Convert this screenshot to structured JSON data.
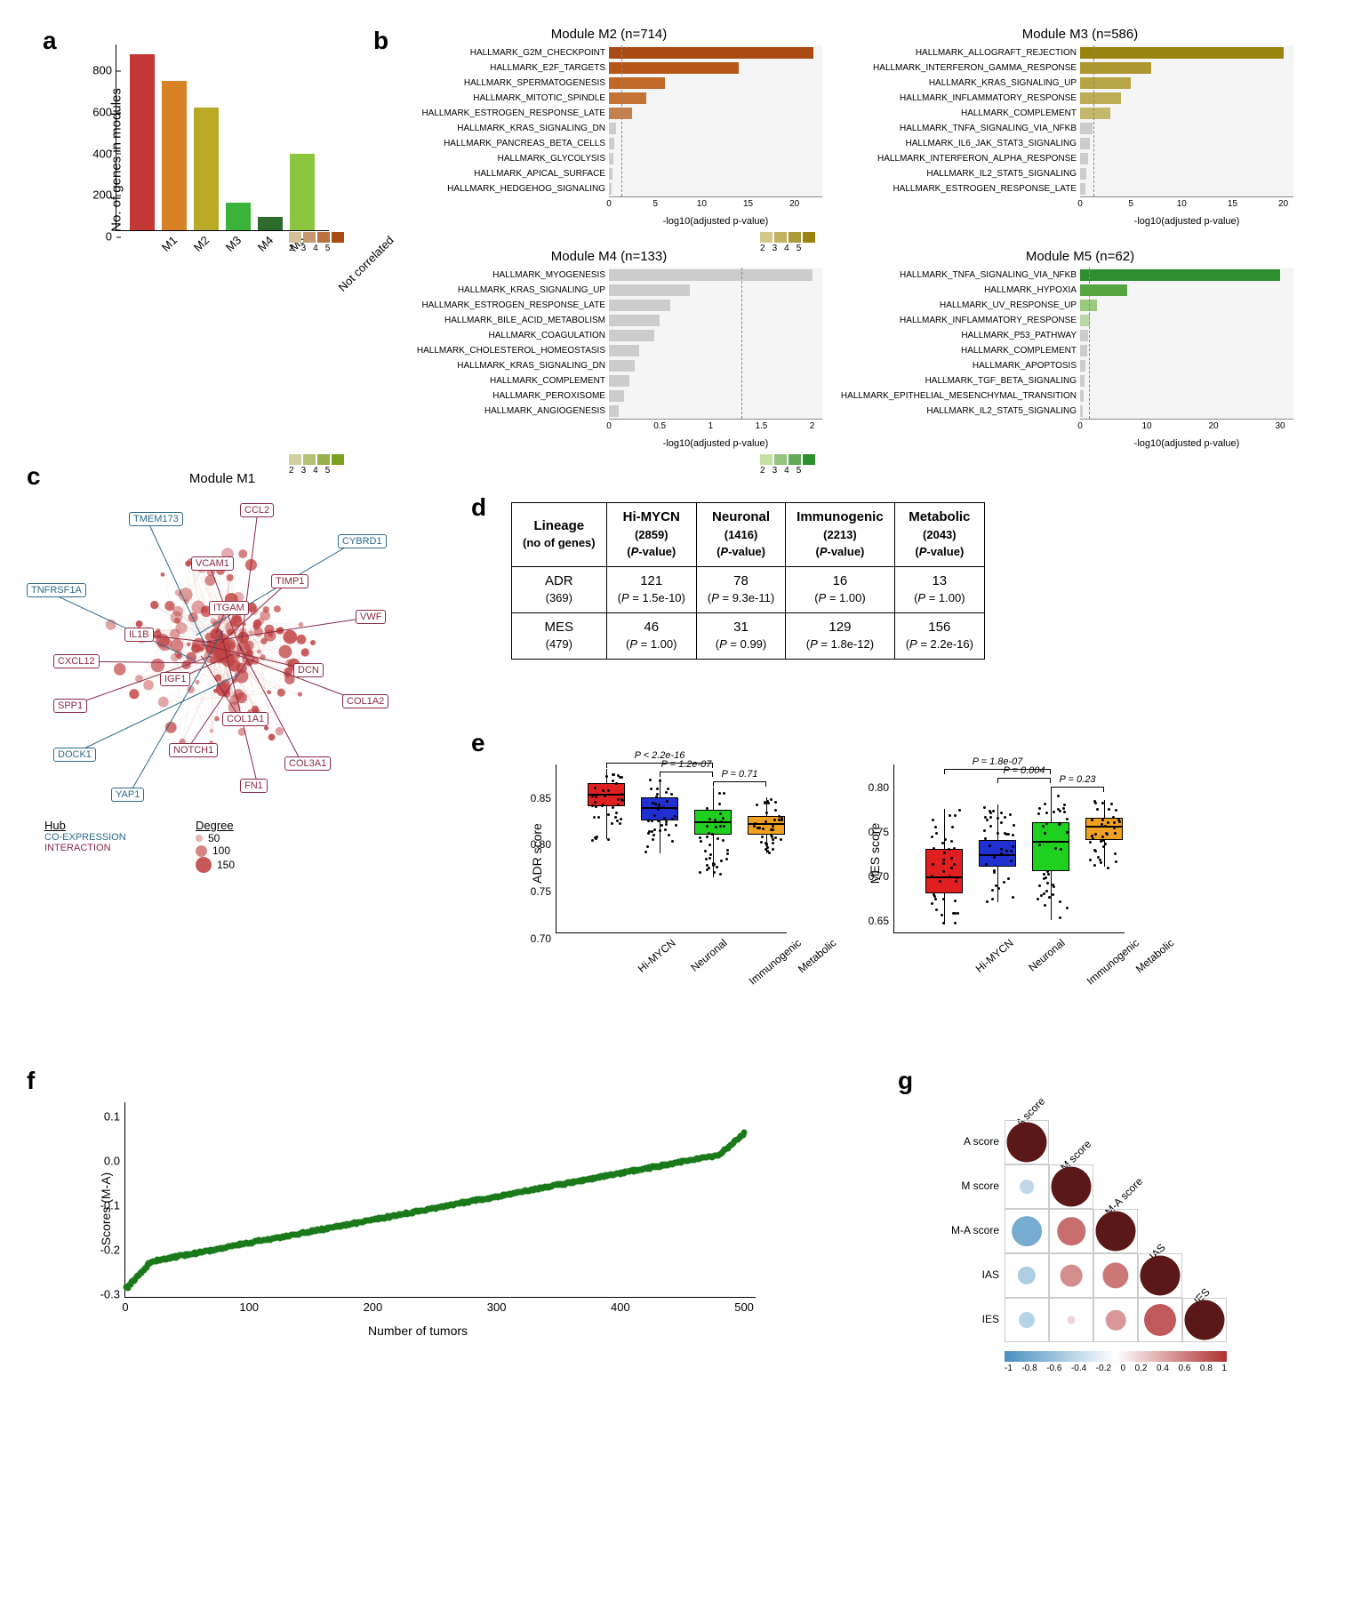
{
  "panel_a": {
    "ylabel": "No. of genes in modules",
    "yticks": [
      0,
      200,
      400,
      600,
      800
    ],
    "ymax": 900,
    "categories": [
      "M1",
      "M2",
      "M3",
      "M4",
      "M5",
      "Not correlated"
    ],
    "values": [
      850,
      720,
      590,
      135,
      65,
      370
    ],
    "colors": [
      "#c33734",
      "#d88226",
      "#b9a926",
      "#3bb33b",
      "#2c6b2c",
      "#8bc63f"
    ]
  },
  "panel_b": {
    "modules": [
      {
        "title": "Module M2 (n=714)",
        "xmax": 23,
        "xticks": [
          0,
          5,
          10,
          15,
          20
        ],
        "threshold": 1.3,
        "color_low": "#d4c19a",
        "color_high": "#a84a12",
        "items": [
          {
            "label": "HALLMARK_G2M_CHECKPOINT",
            "v": 22,
            "c": "#a84a12"
          },
          {
            "label": "HALLMARK_E2F_TARGETS",
            "v": 14,
            "c": "#b55518"
          },
          {
            "label": "HALLMARK_SPERMATOGENESIS",
            "v": 6,
            "c": "#c06827"
          },
          {
            "label": "HALLMARK_MITOTIC_SPINDLE",
            "v": 4,
            "c": "#c37435"
          },
          {
            "label": "HALLMARK_ESTROGEN_RESPONSE_LATE",
            "v": 2.5,
            "c": "#c58050"
          },
          {
            "label": "HALLMARK_KRAS_SIGNALING_DN",
            "v": 0.8,
            "c": "#cccccc"
          },
          {
            "label": "HALLMARK_PANCREAS_BETA_CELLS",
            "v": 0.6,
            "c": "#cccccc"
          },
          {
            "label": "HALLMARK_GLYCOLYSIS",
            "v": 0.5,
            "c": "#cccccc"
          },
          {
            "label": "HALLMARK_APICAL_SURFACE",
            "v": 0.4,
            "c": "#cccccc"
          },
          {
            "label": "HALLMARK_HEDGEHOG_SIGNALING",
            "v": 0.3,
            "c": "#cccccc"
          }
        ]
      },
      {
        "title": "Module M3 (n=586)",
        "xmax": 21,
        "xticks": [
          0,
          5,
          10,
          15,
          20
        ],
        "threshold": 1.3,
        "color_low": "#d4c88a",
        "color_high": "#9a8410",
        "items": [
          {
            "label": "HALLMARK_ALLOGRAFT_REJECTION",
            "v": 20,
            "c": "#9a8410"
          },
          {
            "label": "HALLMARK_INTERFERON_GAMMA_RESPONSE",
            "v": 7,
            "c": "#ad9830"
          },
          {
            "label": "HALLMARK_KRAS_SIGNALING_UP",
            "v": 5,
            "c": "#b7a545"
          },
          {
            "label": "HALLMARK_INFLAMMATORY_RESPONSE",
            "v": 4,
            "c": "#bdae55"
          },
          {
            "label": "HALLMARK_COMPLEMENT",
            "v": 3,
            "c": "#c4b86a"
          },
          {
            "label": "HALLMARK_TNFA_SIGNALING_VIA_NFKB",
            "v": 1.2,
            "c": "#cccccc"
          },
          {
            "label": "HALLMARK_IL6_JAK_STAT3_SIGNALING",
            "v": 1.0,
            "c": "#cccccc"
          },
          {
            "label": "HALLMARK_INTERFERON_ALPHA_RESPONSE",
            "v": 0.8,
            "c": "#cccccc"
          },
          {
            "label": "HALLMARK_IL2_STAT5_SIGNALING",
            "v": 0.6,
            "c": "#cccccc"
          },
          {
            "label": "HALLMARK_ESTROGEN_RESPONSE_LATE",
            "v": 0.5,
            "c": "#cccccc"
          }
        ]
      },
      {
        "title": "Module M4 (n=133)",
        "xmax": 2.1,
        "xticks": [
          0,
          0.5,
          1.0,
          1.5,
          2.0
        ],
        "threshold": 1.3,
        "color_low": "#d0d0a0",
        "color_high": "#7aa020",
        "items": [
          {
            "label": "HALLMARK_MYOGENESIS",
            "v": 2.0,
            "c": "#cccccc"
          },
          {
            "label": "HALLMARK_KRAS_SIGNALING_UP",
            "v": 0.8,
            "c": "#cccccc"
          },
          {
            "label": "HALLMARK_ESTROGEN_RESPONSE_LATE",
            "v": 0.6,
            "c": "#cccccc"
          },
          {
            "label": "HALLMARK_BILE_ACID_METABOLISM",
            "v": 0.5,
            "c": "#cccccc"
          },
          {
            "label": "HALLMARK_COAGULATION",
            "v": 0.45,
            "c": "#cccccc"
          },
          {
            "label": "HALLMARK_CHOLESTEROL_HOMEOSTASIS",
            "v": 0.3,
            "c": "#cccccc"
          },
          {
            "label": "HALLMARK_KRAS_SIGNALING_DN",
            "v": 0.25,
            "c": "#cccccc"
          },
          {
            "label": "HALLMARK_COMPLEMENT",
            "v": 0.2,
            "c": "#cccccc"
          },
          {
            "label": "HALLMARK_PEROXISOME",
            "v": 0.15,
            "c": "#cccccc"
          },
          {
            "label": "HALLMARK_ANGIOGENESIS",
            "v": 0.1,
            "c": "#cccccc"
          }
        ]
      },
      {
        "title": "Module M5 (n=62)",
        "xmax": 32,
        "xticks": [
          0,
          10,
          20,
          30
        ],
        "threshold": 1.3,
        "color_low": "#c5e0a5",
        "color_high": "#2f8f2f",
        "items": [
          {
            "label": "HALLMARK_TNFA_SIGNALING_VIA_NFKB",
            "v": 30,
            "c": "#2f8f2f"
          },
          {
            "label": "HALLMARK_HYPOXIA",
            "v": 7,
            "c": "#55a540"
          },
          {
            "label": "HALLMARK_UV_RESPONSE_UP",
            "v": 2.5,
            "c": "#9bc980"
          },
          {
            "label": "HALLMARK_INFLAMMATORY_RESPONSE",
            "v": 1.5,
            "c": "#b8d8a5"
          },
          {
            "label": "HALLMARK_P53_PATHWAY",
            "v": 1.2,
            "c": "#cccccc"
          },
          {
            "label": "HALLMARK_COMPLEMENT",
            "v": 1.0,
            "c": "#cccccc"
          },
          {
            "label": "HALLMARK_APOPTOSIS",
            "v": 0.8,
            "c": "#cccccc"
          },
          {
            "label": "HALLMARK_TGF_BETA_SIGNALING",
            "v": 0.6,
            "c": "#cccccc"
          },
          {
            "label": "HALLMARK_EPITHELIAL_MESENCHYMAL_TRANSITION",
            "v": 0.5,
            "c": "#cccccc"
          },
          {
            "label": "HALLMARK_IL2_STAT5_SIGNALING",
            "v": 0.4,
            "c": "#cccccc"
          }
        ]
      }
    ],
    "xlabel": "-log10(adjusted p-value)",
    "legend_ticks": [
      "2",
      "3",
      "4",
      "5"
    ]
  },
  "panel_c": {
    "title": "Module M1",
    "hub_title": "Hub",
    "hub_types": [
      "CO-EXPRESSION",
      "INTERACTION"
    ],
    "hub_colors": [
      "#2b6a8a",
      "#8b2942"
    ],
    "degree_title": "Degree",
    "degree_levels": [
      50,
      100,
      150
    ],
    "node_color": "#c24545",
    "labels_int": [
      "CCL2",
      "VCAM1",
      "TIMP1",
      "ITGAM",
      "VWF",
      "IL1B",
      "CXCL12",
      "IGF1",
      "DCN",
      "SPP1",
      "COL1A1",
      "COL1A2",
      "NOTCH1",
      "COL3A1",
      "FN1"
    ],
    "labels_coex": [
      "TMEM173",
      "CYBRD1",
      "TNFRSF1A",
      "DOCK1",
      "YAP1"
    ]
  },
  "panel_d": {
    "header": [
      "Lineage",
      "Hi-MYCN",
      "Neuronal",
      "Immunogenic",
      "Metabolic"
    ],
    "header_sub": [
      "(no of genes)",
      "(2859)",
      "(1416)",
      "(2213)",
      "(2043)"
    ],
    "header_sub2": [
      "",
      "(P-value)",
      "(P-value)",
      "(P-value)",
      "(P-value)"
    ],
    "rows": [
      {
        "name": "ADR",
        "sub": "(369)",
        "cells": [
          {
            "v": "121",
            "p": "(P = 1.5e-10)"
          },
          {
            "v": "78",
            "p": "(P = 9.3e-11)"
          },
          {
            "v": "16",
            "p": "(P = 1.00)"
          },
          {
            "v": "13",
            "p": "(P = 1.00)"
          }
        ]
      },
      {
        "name": "MES",
        "sub": "(479)",
        "cells": [
          {
            "v": "46",
            "p": "(P = 1.00)"
          },
          {
            "v": "31",
            "p": "(P = 0.99)"
          },
          {
            "v": "129",
            "p": "(P = 1.8e-12)"
          },
          {
            "v": "156",
            "p": "(P = 2.2e-16)"
          }
        ]
      }
    ]
  },
  "panel_e": {
    "plots": [
      {
        "ylabel": "ADR score",
        "ymin": 0.7,
        "ymax": 0.88,
        "yticks": [
          0.7,
          0.75,
          0.8,
          0.85
        ],
        "categories": [
          "Hi-MYCN",
          "Neuronal",
          "Immunogenic",
          "Metabolic"
        ],
        "colors": [
          "#e02020",
          "#2030d0",
          "#20d020",
          "#f0a020"
        ],
        "boxes": [
          {
            "q1": 0.835,
            "med": 0.85,
            "q3": 0.86,
            "lo": 0.8,
            "hi": 0.875
          },
          {
            "q1": 0.82,
            "med": 0.835,
            "q3": 0.845,
            "lo": 0.785,
            "hi": 0.865
          },
          {
            "q1": 0.805,
            "med": 0.82,
            "q3": 0.832,
            "lo": 0.76,
            "hi": 0.855
          },
          {
            "q1": 0.805,
            "med": 0.818,
            "q3": 0.825,
            "lo": 0.785,
            "hi": 0.845
          }
        ],
        "pvals": [
          {
            "from": 0,
            "to": 2,
            "y": 0.882,
            "text": "P < 2.2e-16"
          },
          {
            "from": 1,
            "to": 2,
            "y": 0.872,
            "text": "P = 1.2e-07"
          },
          {
            "from": 2,
            "to": 3,
            "y": 0.862,
            "text": "P = 0.71"
          }
        ]
      },
      {
        "ylabel": "MES score",
        "ymin": 0.63,
        "ymax": 0.82,
        "yticks": [
          0.65,
          0.7,
          0.75,
          0.8
        ],
        "categories": [
          "Hi-MYCN",
          "Neuronal",
          "Immunogenic",
          "Metabolic"
        ],
        "colors": [
          "#e02020",
          "#2030d0",
          "#20d020",
          "#f0a020"
        ],
        "boxes": [
          {
            "q1": 0.675,
            "med": 0.695,
            "q3": 0.725,
            "lo": 0.64,
            "hi": 0.77
          },
          {
            "q1": 0.705,
            "med": 0.72,
            "q3": 0.735,
            "lo": 0.665,
            "hi": 0.775
          },
          {
            "q1": 0.7,
            "med": 0.735,
            "q3": 0.755,
            "lo": 0.645,
            "hi": 0.79
          },
          {
            "q1": 0.735,
            "med": 0.752,
            "q3": 0.76,
            "lo": 0.705,
            "hi": 0.78
          }
        ],
        "pvals": [
          {
            "from": 0,
            "to": 2,
            "y": 0.815,
            "text": "P = 1.8e-07"
          },
          {
            "from": 1,
            "to": 2,
            "y": 0.805,
            "text": "P = 0.004"
          },
          {
            "from": 2,
            "to": 3,
            "y": 0.795,
            "text": "P = 0.23"
          }
        ]
      }
    ]
  },
  "panel_f": {
    "ylabel": "Scores (M-A)",
    "xlabel": "Number of tumors",
    "xmin": 0,
    "xmax": 510,
    "ymin": -0.32,
    "ymax": 0.12,
    "xticks": [
      0,
      100,
      200,
      300,
      400,
      500
    ],
    "yticks": [
      -0.3,
      -0.2,
      -0.1,
      0,
      0.1
    ],
    "dot_color": "#1a7a1a",
    "n": 500
  },
  "panel_g": {
    "labels": [
      "A score",
      "M score",
      "M-A score",
      "IAS",
      "IES"
    ],
    "cell_size": 50,
    "matrix": [
      [
        1.0,
        null,
        null,
        null,
        null
      ],
      [
        -0.35,
        1.0,
        null,
        null,
        null
      ],
      [
        -0.75,
        0.7,
        1.0,
        null,
        null
      ],
      [
        -0.45,
        0.55,
        0.65,
        1.0,
        null
      ],
      [
        -0.4,
        0.2,
        0.5,
        0.8,
        1.0
      ]
    ],
    "scale_ticks": [
      -1,
      -0.8,
      -0.6,
      -0.4,
      -0.2,
      0,
      0.2,
      0.4,
      0.6,
      0.8,
      1
    ],
    "neg_color": "#4a90c0",
    "pos_color": "#b03030",
    "diag_color": "#5a1818"
  }
}
